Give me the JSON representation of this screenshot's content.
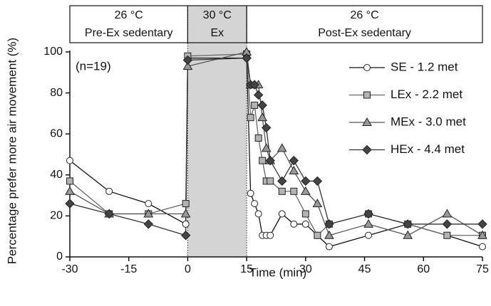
{
  "chart_data": {
    "type": "line",
    "x_label": "Time (min)",
    "y_label": "Percentage prefer more air movement (%)",
    "annotation": "(n=19)",
    "phases": [
      {
        "temp": "26 °C",
        "label": "Pre-Ex sedentary",
        "start": -30,
        "end": 0
      },
      {
        "temp": "30 °C",
        "label": "Ex",
        "start": 0,
        "end": 15,
        "shaded": true
      },
      {
        "temp": "26 °C",
        "label": "Post-Ex sedentary",
        "start": 15,
        "end": 75
      }
    ],
    "x": [
      -30,
      -20,
      -10,
      -0.5,
      0,
      15,
      16,
      17,
      18,
      19,
      20,
      21,
      24,
      27,
      30,
      33,
      36,
      46,
      56,
      66,
      75
    ],
    "series": [
      {
        "name": "SE - 1.2 met",
        "marker": "circle",
        "color": "#ffffff",
        "line_color": "#111111",
        "values": [
          47,
          32,
          26,
          16,
          97,
          97,
          31,
          26,
          21,
          10.5,
          10.5,
          10.5,
          21,
          16,
          16,
          10.5,
          5,
          10.5,
          16,
          10.5,
          5
        ]
      },
      {
        "name": "LEx - 2.2 met",
        "marker": "square",
        "color": "#b3b3b3",
        "line_color": "#666666",
        "values": [
          37,
          21,
          21,
          26,
          98,
          99,
          68,
          74,
          58,
          47,
          37,
          37,
          32,
          32,
          21,
          10.5,
          16,
          21,
          16,
          10.5,
          10.5
        ]
      },
      {
        "name": "MEx - 3.0 met",
        "marker": "triangle",
        "color": "#999999",
        "line_color": "#555555",
        "values": [
          32,
          21,
          21,
          21,
          93,
          100,
          84,
          84,
          84,
          68,
          53,
          47,
          53,
          42,
          32,
          26,
          10.5,
          16,
          10.5,
          21,
          10.5
        ]
      },
      {
        "name": "HEx - 4.4 met",
        "marker": "diamond",
        "color": "#444444",
        "line_color": "#333333",
        "values": [
          26,
          21,
          16,
          10.5,
          96,
          97,
          84,
          84,
          79,
          74,
          63,
          47,
          37,
          47,
          37,
          37,
          16,
          21,
          16,
          16,
          16
        ]
      }
    ],
    "xlim": [
      -30,
      75
    ],
    "xticks": [
      -30,
      -15,
      0,
      15,
      30,
      45,
      60,
      75
    ],
    "ylim": [
      0,
      100
    ],
    "yticks": [
      0,
      20,
      40,
      60,
      80,
      100
    ],
    "grid": false,
    "legend": "upper right"
  }
}
